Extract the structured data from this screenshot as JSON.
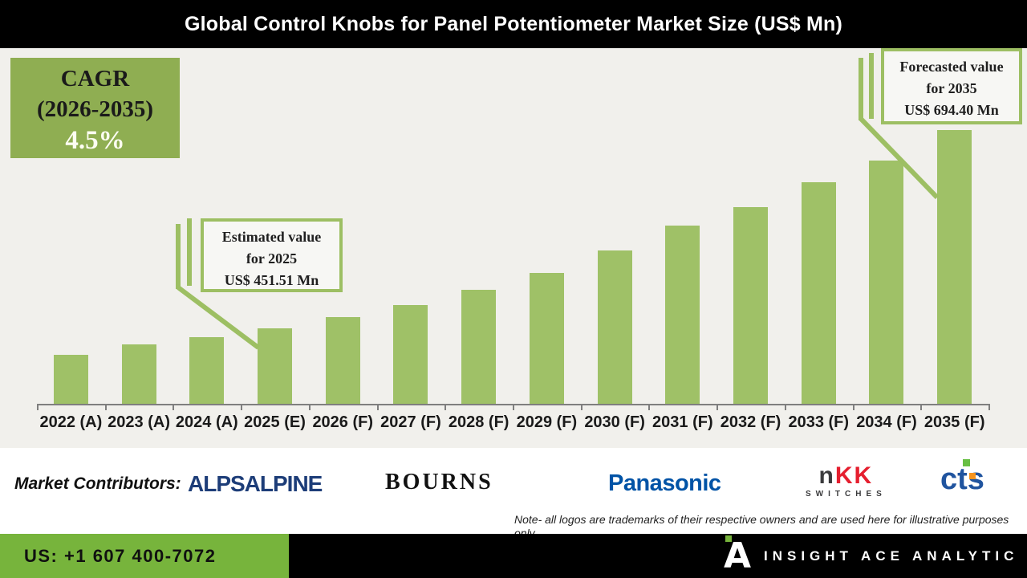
{
  "title": "Global Control Knobs for Panel Potentiometer Market Size (US$ Mn)",
  "chart_data": {
    "type": "bar",
    "title": "Global Control Knobs for Panel Potentiometer Market Size (US$ Mn)",
    "unit": "US$ Mn",
    "categories": [
      "2022 (A)",
      "2023 (A)",
      "2024 (A)",
      "2025 (E)",
      "2026 (F)",
      "2027 (F)",
      "2028 (F)",
      "2029 (F)",
      "2030 (F)",
      "2031 (F)",
      "2032 (F)",
      "2033 (F)",
      "2034 (F)",
      "2035 (F)"
    ],
    "values": [
      419.3,
      431.5,
      440.4,
      451.51,
      465.0,
      479.4,
      498.1,
      519.4,
      546.3,
      577.5,
      600.2,
      630.4,
      656.6,
      694.4
    ],
    "labeled_points": {
      "2025 (E)": 451.51,
      "2035 (F)": 694.4
    },
    "ylim": [
      359,
      700
    ],
    "grid": false,
    "legend": "none",
    "bar_color": "#9fc167",
    "annotations": {
      "cagr": {
        "line1": "CAGR",
        "line2": "(2026-2035)",
        "line3": "4.5%"
      },
      "estimated": {
        "line1": "Estimated value",
        "line2": "for 2025",
        "line3": "US$ 451.51 Mn"
      },
      "forecast": {
        "line1": "Forecasted value",
        "line2": "for 2035",
        "line3": "US$ 694.40 Mn"
      }
    }
  },
  "contributors": {
    "label": "Market Contributors:",
    "logos": [
      {
        "name": "ALPS ALPINE",
        "text": "ALPSALPINE"
      },
      {
        "name": "BOURNS",
        "text": "BOURNS"
      },
      {
        "name": "Panasonic",
        "text": "Panasonic"
      },
      {
        "name": "NKK Switches",
        "part1": "n",
        "part2": "KK",
        "sub": "SWITCHES"
      },
      {
        "name": "CTS",
        "text": "cts"
      }
    ]
  },
  "note_line1": "Note- all logos are trademarks of their respective owners and are used here for illustrative purposes",
  "note_line2": "only.",
  "footer": {
    "phone": "US: +1 607 400-7072",
    "brand": "INSIGHT ACE ANALYTIC",
    "brand_glyph_letter": "A"
  },
  "colors": {
    "bar_green": "#9fc167",
    "callout_green": "#9dbf63",
    "cagr_box_green": "#8fae52",
    "phone_box_green": "#77b43c",
    "chart_background": "#f1f0ec",
    "title_bar": "#000000"
  }
}
